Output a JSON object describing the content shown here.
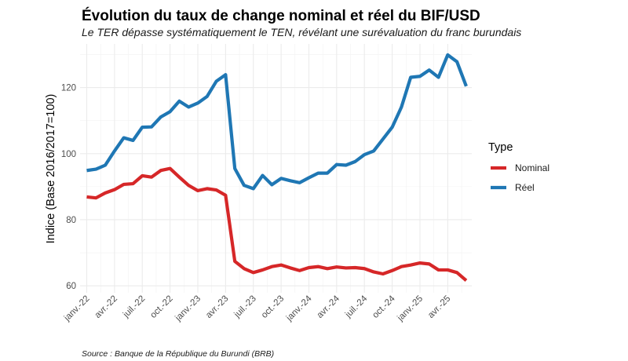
{
  "chart_data": {
    "type": "line",
    "title": "Évolution du taux de change nominal et réel du BIF/USD",
    "subtitle": "Le TER dépasse systématiquement le TEN, révélant une surévaluation du franc burundais",
    "caption": "Source : Banque de la République du Burundi (BRB)",
    "xlabel": "",
    "ylabel": "Indice (Base 2016/2017=100)",
    "x": [
      "2022-01",
      "2022-02",
      "2022-03",
      "2022-04",
      "2022-05",
      "2022-06",
      "2022-07",
      "2022-08",
      "2022-09",
      "2022-10",
      "2022-11",
      "2022-12",
      "2023-01",
      "2023-02",
      "2023-03",
      "2023-04",
      "2023-05",
      "2023-06",
      "2023-07",
      "2023-08",
      "2023-09",
      "2023-10",
      "2023-11",
      "2023-12",
      "2024-01",
      "2024-02",
      "2024-03",
      "2024-04",
      "2024-05",
      "2024-06",
      "2024-07",
      "2024-08",
      "2024-09",
      "2024-10",
      "2024-11",
      "2024-12",
      "2025-01",
      "2025-02",
      "2025-03",
      "2025-04",
      "2025-05",
      "2025-06"
    ],
    "x_ticks": [
      "janv.-22",
      "avr.-22",
      "juil.-22",
      "oct.-22",
      "janv.-23",
      "avr.-23",
      "juil.-23",
      "oct.-23",
      "janv.-24",
      "avr.-24",
      "juil.-24",
      "oct.-24",
      "janv.-25",
      "avr.-25"
    ],
    "x_tick_step_months": 3,
    "y_ticks": [
      60,
      80,
      100,
      120
    ],
    "y_minor_ticks": [
      70,
      90,
      110,
      130
    ],
    "ylim": [
      57.9,
      133.2
    ],
    "grid": true,
    "legend": {
      "title": "Type",
      "position": "right"
    },
    "series": [
      {
        "name": "Nominal",
        "color": "#d62728",
        "values": [
          86.9,
          86.6,
          88.1,
          89.1,
          90.7,
          90.9,
          93.3,
          92.9,
          94.9,
          95.5,
          92.9,
          90.4,
          88.8,
          89.4,
          89.0,
          87.4,
          67.4,
          65.2,
          64.0,
          64.8,
          65.8,
          66.3,
          65.4,
          64.6,
          65.5,
          65.8,
          65.2,
          65.7,
          65.4,
          65.5,
          65.2,
          64.2,
          63.6,
          64.6,
          65.8,
          66.3,
          66.9,
          66.6,
          64.8,
          64.8,
          64.0,
          61.6
        ]
      },
      {
        "name": "Réel",
        "color": "#1f77b4",
        "values": [
          94.9,
          95.3,
          96.5,
          100.8,
          104.8,
          104.0,
          108.0,
          108.1,
          111.1,
          112.7,
          115.9,
          114.1,
          115.3,
          117.3,
          121.9,
          123.9,
          95.5,
          90.4,
          89.4,
          93.4,
          90.6,
          92.5,
          91.8,
          91.2,
          92.7,
          94.1,
          94.1,
          96.7,
          96.5,
          97.6,
          99.7,
          100.8,
          104.4,
          108.0,
          114.1,
          123.1,
          123.4,
          125.3,
          123.1,
          129.9,
          127.8,
          120.4
        ]
      }
    ]
  }
}
